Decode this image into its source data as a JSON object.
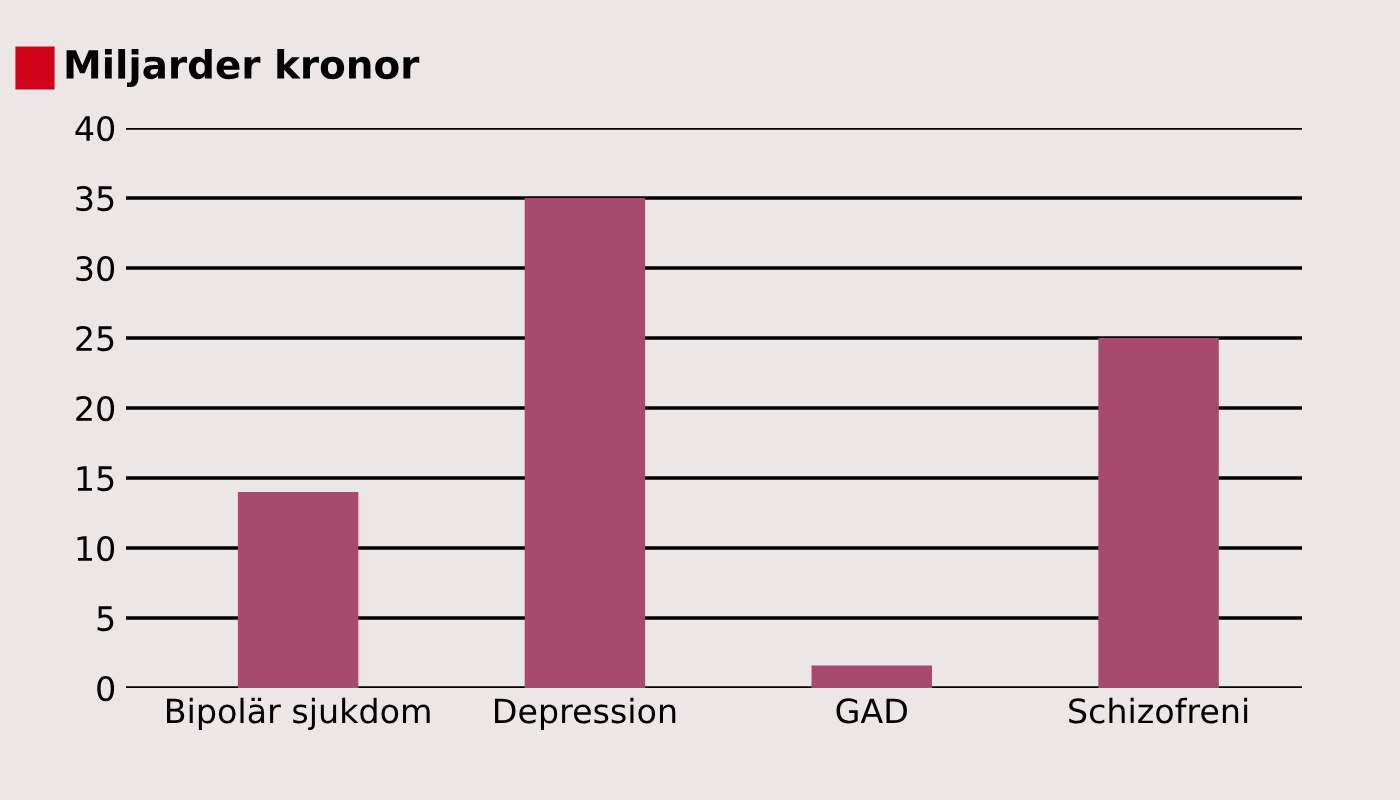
{
  "chart_data": {
    "type": "bar",
    "title": "Miljarder kronor",
    "categories": [
      "Bipolär sjukdom",
      "Depression",
      "GAD",
      "Schizofreni"
    ],
    "values": [
      14,
      35,
      1.6,
      25
    ],
    "color": "#a84a6e",
    "ylim": [
      0,
      40
    ],
    "yticks": [
      0,
      5,
      10,
      15,
      20,
      25,
      30,
      35,
      40
    ],
    "grid": "y"
  }
}
